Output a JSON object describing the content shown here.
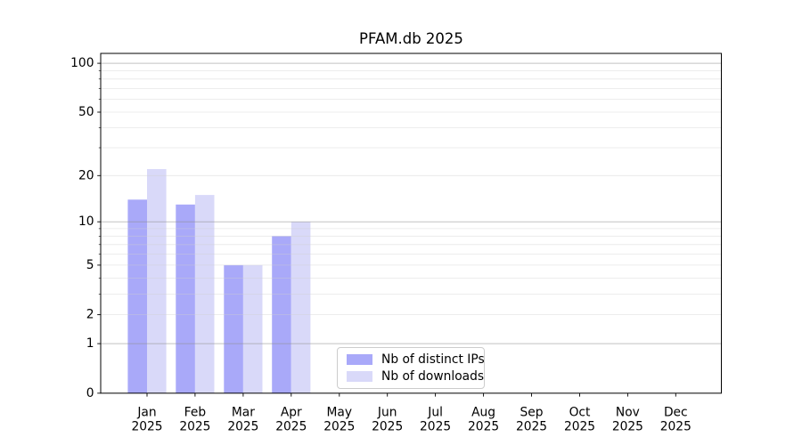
{
  "title": "PFAM.db 2025",
  "chart_data": {
    "type": "bar",
    "title": "PFAM.db 2025",
    "categories": [
      "Jan",
      "Feb",
      "Mar",
      "Apr",
      "May",
      "Jun",
      "Jul",
      "Aug",
      "Sep",
      "Oct",
      "Nov",
      "Dec"
    ],
    "category_sublabel": "2025",
    "series": [
      {
        "name": "Nb of distinct IPs",
        "color": "#a9a9f9",
        "values": [
          14,
          13,
          5,
          8,
          null,
          null,
          null,
          null,
          null,
          null,
          null,
          null
        ]
      },
      {
        "name": "Nb of downloads",
        "color": "#d9d9f9",
        "values": [
          22,
          15,
          5,
          10,
          null,
          null,
          null,
          null,
          null,
          null,
          null,
          null
        ]
      }
    ],
    "yscale": "log1p",
    "yticks": [
      0,
      1,
      2,
      5,
      10,
      20,
      50,
      100
    ],
    "yminorticks": [
      3,
      4,
      6,
      7,
      8,
      9,
      30,
      40,
      60,
      70,
      80,
      90
    ],
    "ylim": [
      0,
      115
    ],
    "grid": "both",
    "legend_position": "lower-center"
  },
  "colors": {
    "grid_minor": "#cfcfcf",
    "grid_major": "#8f8f8f",
    "axis": "#000000",
    "background": "#ffffff"
  }
}
